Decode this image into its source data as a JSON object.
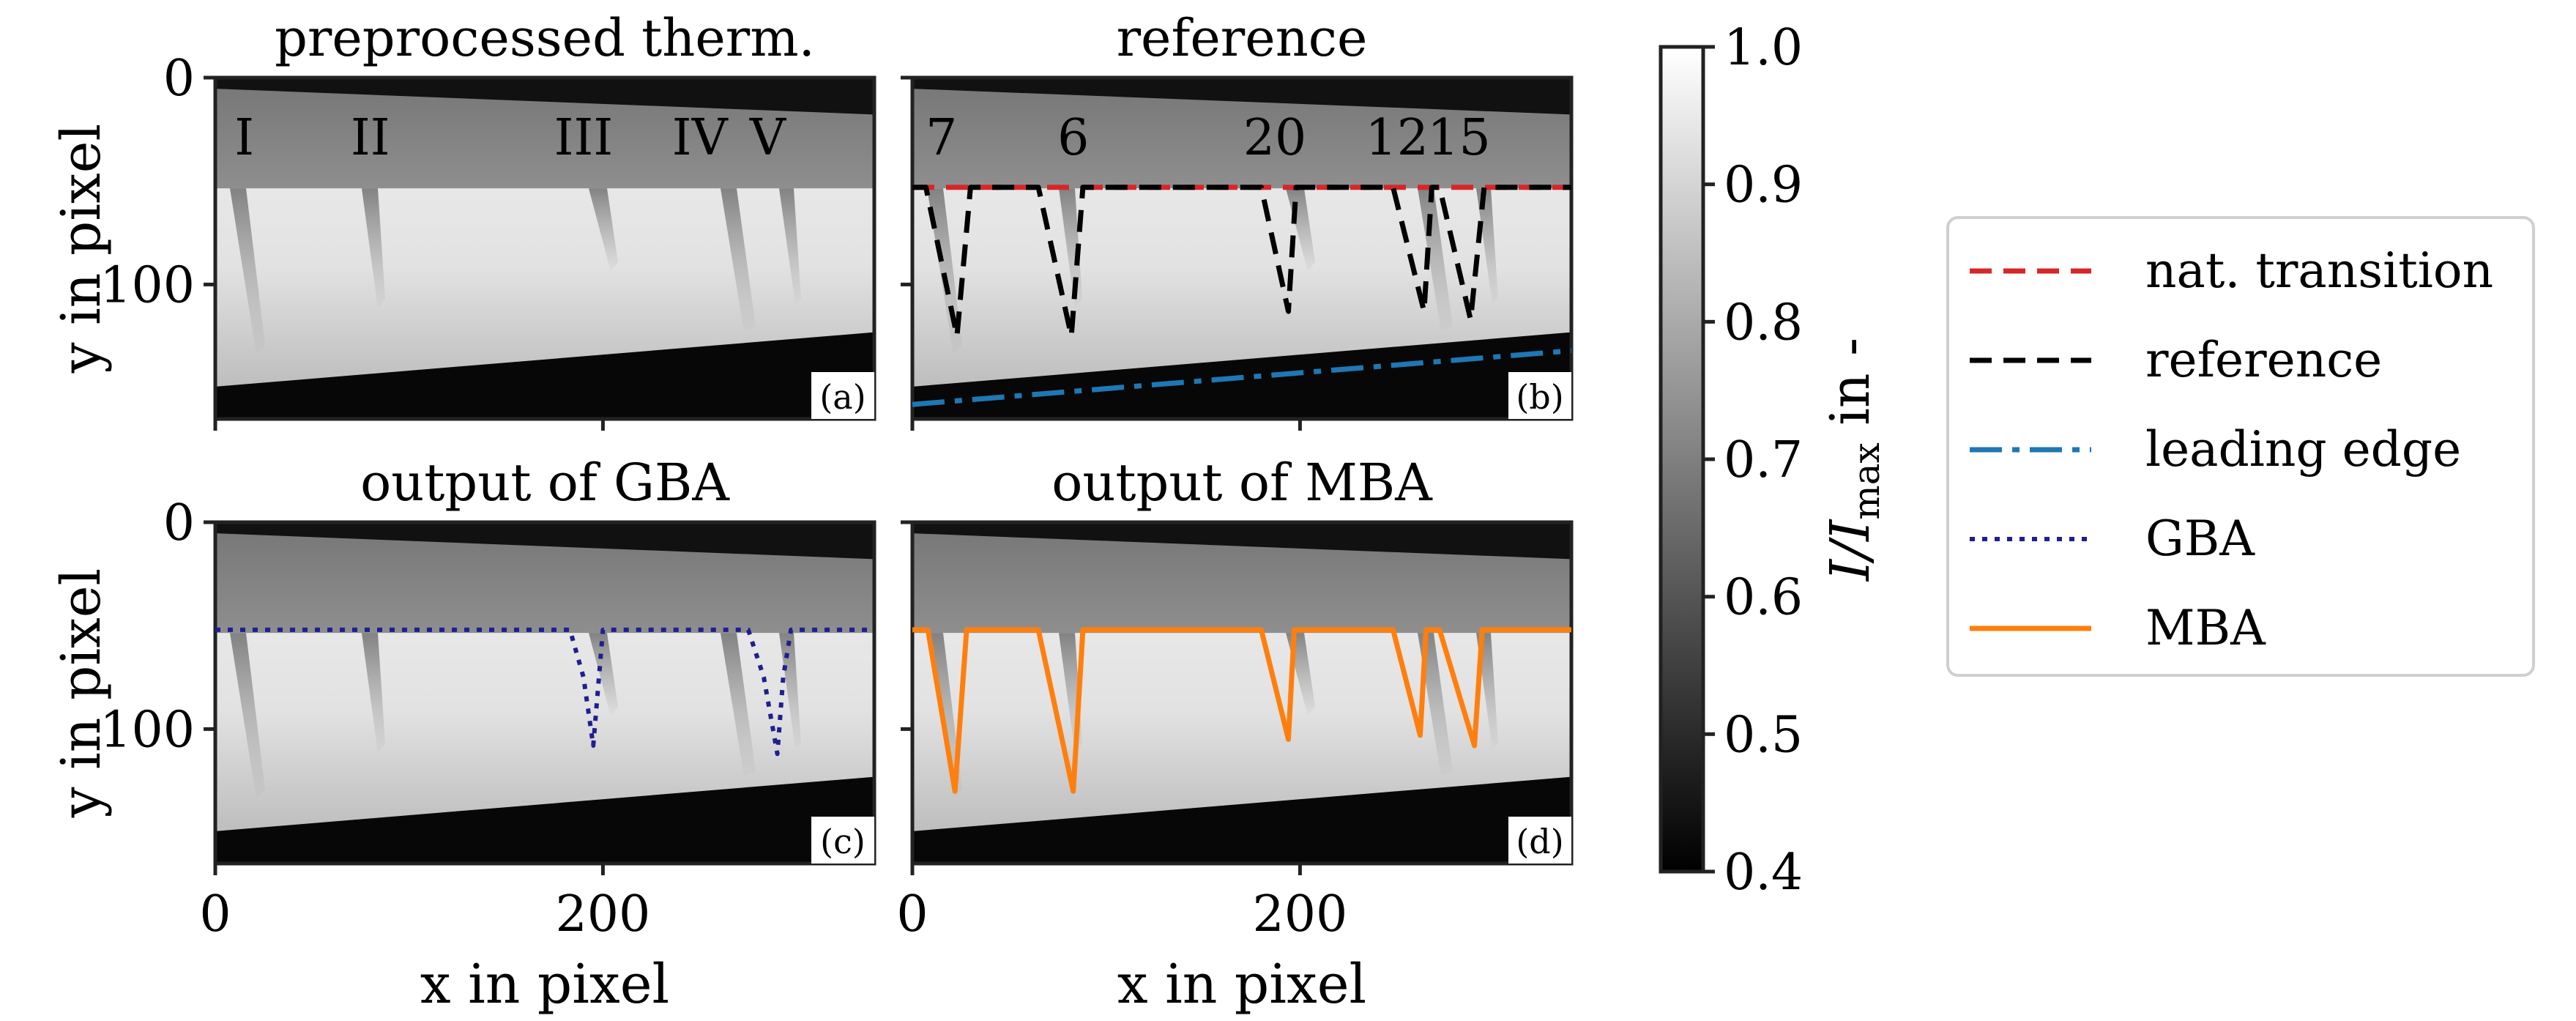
{
  "chart_data": [
    {
      "id": "a",
      "type": "heatmap",
      "title": "preprocessed therm.",
      "panel_label": "(a)",
      "xlabel": "",
      "ylabel": "y in pixel",
      "xlim": [
        0,
        340
      ],
      "ylim": [
        165,
        0
      ],
      "yticks": [
        0,
        100
      ],
      "xticks": [
        0,
        200
      ],
      "show_xticklabels": false,
      "show_yticklabels": true,
      "element_labels": [
        {
          "text": "I",
          "x": 15
        },
        {
          "text": "II",
          "x": 80
        },
        {
          "text": "III",
          "x": 190
        },
        {
          "text": "IV",
          "x": 250
        },
        {
          "text": "V",
          "x": 285
        }
      ]
    },
    {
      "id": "b",
      "type": "heatmap",
      "title": "reference",
      "panel_label": "(b)",
      "xlabel": "",
      "ylabel": "",
      "xlim": [
        0,
        340
      ],
      "ylim": [
        165,
        0
      ],
      "yticks": [
        0,
        100
      ],
      "xticks": [
        0,
        200
      ],
      "show_xticklabels": false,
      "show_yticklabels": false,
      "wedge_labels": [
        {
          "text": "7",
          "x": 15
        },
        {
          "text": "6",
          "x": 83
        },
        {
          "text": "20",
          "x": 187
        },
        {
          "text": "12",
          "x": 250
        },
        {
          "text": "15",
          "x": 282
        }
      ],
      "series": [
        {
          "name": "nat. transition",
          "style": "dashed",
          "color": "#d62728",
          "x": [
            0,
            340
          ],
          "y": [
            53,
            53
          ]
        },
        {
          "name": "reference",
          "style": "dashed",
          "color": "#000000",
          "x": [
            0,
            7,
            23,
            30,
            65,
            82,
            88,
            180,
            194,
            198,
            248,
            264,
            268,
            272,
            288,
            295,
            340
          ],
          "y": [
            53,
            53,
            125,
            53,
            53,
            125,
            53,
            53,
            113,
            53,
            53,
            113,
            53,
            53,
            117,
            53,
            53
          ]
        },
        {
          "name": "leading edge",
          "style": "dashdot",
          "color": "#1f77b4",
          "x": [
            0,
            340
          ],
          "y": [
            158,
            132
          ]
        }
      ]
    },
    {
      "id": "c",
      "type": "heatmap",
      "title": "output of GBA",
      "panel_label": "(c)",
      "xlabel": "x in pixel",
      "ylabel": "y in pixel",
      "xlim": [
        0,
        340
      ],
      "ylim": [
        165,
        0
      ],
      "yticks": [
        0,
        100
      ],
      "xticks": [
        0,
        200
      ],
      "xticklabels": [
        "0",
        "200"
      ],
      "show_xticklabels": true,
      "show_yticklabels": true,
      "series": [
        {
          "name": "GBA",
          "style": "dotted",
          "color": "#1f1f8f",
          "x": [
            0,
            175,
            183,
            190,
            195,
            200,
            275,
            283,
            290,
            293,
            297,
            340
          ],
          "y": [
            52,
            52,
            52,
            75,
            108,
            52,
            52,
            75,
            112,
            75,
            52,
            52
          ]
        }
      ]
    },
    {
      "id": "d",
      "type": "heatmap",
      "title": "output of MBA",
      "panel_label": "(d)",
      "xlabel": "x in pixel",
      "ylabel": "",
      "xlim": [
        0,
        340
      ],
      "ylim": [
        165,
        0
      ],
      "yticks": [
        0,
        100
      ],
      "xticks": [
        0,
        200
      ],
      "xticklabels": [
        "0",
        "200"
      ],
      "show_xticklabels": true,
      "show_yticklabels": false,
      "series": [
        {
          "name": "MBA",
          "style": "solid",
          "color": "#ff7f0e",
          "x": [
            0,
            8,
            22,
            28,
            65,
            83,
            88,
            180,
            194,
            197,
            248,
            262,
            265,
            272,
            290,
            294,
            340
          ],
          "y": [
            52,
            52,
            130,
            52,
            52,
            130,
            52,
            52,
            105,
            52,
            52,
            103,
            52,
            52,
            108,
            52,
            52
          ]
        }
      ]
    },
    {
      "id": "colorbar",
      "type": "colorbar",
      "label": "I/I_max in -",
      "label_main": "I/I",
      "label_sub": "max",
      "label_suffix": " in -",
      "min": 0.4,
      "max": 1.0,
      "ticks": [
        "0.4",
        "0.5",
        "0.6",
        "0.7",
        "0.8",
        "0.9",
        "1.0"
      ]
    }
  ],
  "legend": {
    "position": "right",
    "entries": [
      {
        "label": "nat. transition",
        "style": "dashed",
        "color": "#d62728"
      },
      {
        "label": "reference",
        "style": "dashed",
        "color": "#000000"
      },
      {
        "label": "leading edge",
        "style": "dashdot",
        "color": "#1f77b4"
      },
      {
        "label": "GBA",
        "style": "dotted",
        "color": "#1f1f8f"
      },
      {
        "label": "MBA",
        "style": "solid",
        "color": "#ff7f0e"
      }
    ]
  }
}
